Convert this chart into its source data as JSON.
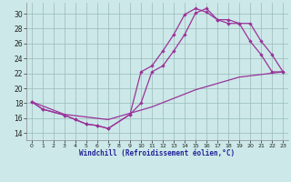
{
  "xlabel": "Windchill (Refroidissement éolien,°C)",
  "bg_color": "#cce8e8",
  "line_color": "#993399",
  "grid_color": "#99bbbb",
  "xlim": [
    -0.5,
    23.5
  ],
  "ylim": [
    13,
    31.5
  ],
  "yticks": [
    14,
    16,
    18,
    20,
    22,
    24,
    26,
    28,
    30
  ],
  "xticks": [
    0,
    1,
    2,
    3,
    4,
    5,
    6,
    7,
    8,
    9,
    10,
    11,
    12,
    13,
    14,
    15,
    16,
    17,
    18,
    19,
    20,
    21,
    22,
    23
  ],
  "curve1_x": [
    0,
    1,
    3,
    4,
    5,
    6,
    7,
    9,
    10,
    11,
    12,
    13,
    14,
    15,
    16,
    17,
    18,
    19,
    20,
    21,
    22,
    23
  ],
  "curve1_y": [
    18.2,
    17.2,
    16.4,
    15.8,
    15.2,
    15.0,
    14.6,
    16.5,
    22.2,
    23.0,
    25.0,
    27.2,
    29.9,
    30.7,
    30.2,
    29.2,
    29.2,
    28.7,
    26.3,
    24.5,
    22.2,
    22.2
  ],
  "curve2_x": [
    0,
    1,
    3,
    4,
    5,
    6,
    7,
    9,
    10,
    11,
    12,
    13,
    14,
    15,
    16,
    17,
    18,
    19,
    20,
    21,
    22,
    23
  ],
  "curve2_y": [
    18.2,
    17.2,
    16.4,
    15.8,
    15.2,
    15.0,
    14.6,
    16.5,
    18.0,
    22.2,
    23.0,
    25.0,
    27.2,
    30.1,
    30.7,
    29.2,
    28.7,
    28.7,
    28.7,
    26.3,
    24.5,
    22.2
  ],
  "curve3_x": [
    0,
    3,
    7,
    11,
    15,
    19,
    23
  ],
  "curve3_y": [
    18.2,
    16.5,
    15.8,
    17.5,
    19.8,
    21.5,
    22.2
  ]
}
